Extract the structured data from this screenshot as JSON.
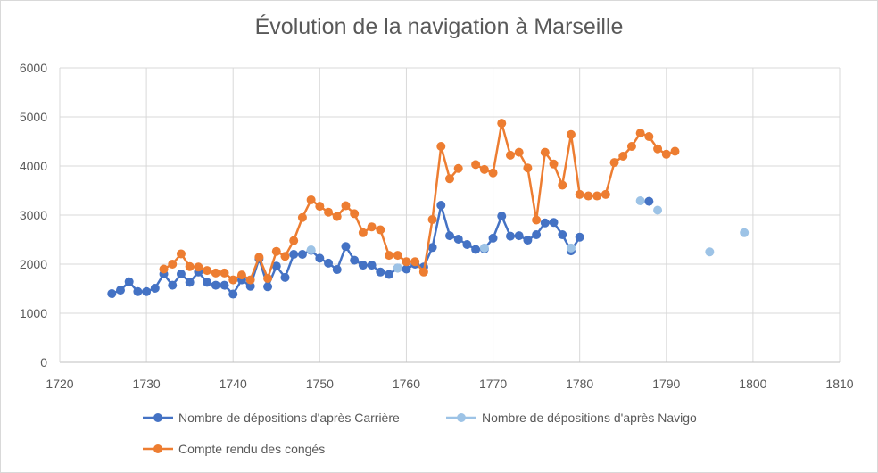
{
  "chart_data": {
    "type": "scatter",
    "title": "Évolution de la navigation à Marseille",
    "xlabel": "",
    "ylabel": "",
    "xlim": [
      1720,
      1810
    ],
    "ylim": [
      0,
      6000
    ],
    "x_ticks": [
      "1720",
      "1730",
      "1740",
      "1750",
      "1760",
      "1770",
      "1780",
      "1790",
      "1800",
      "1810"
    ],
    "y_ticks": [
      "0",
      "1000",
      "2000",
      "3000",
      "4000",
      "5000",
      "6000"
    ],
    "grid": "vertical and horizontal",
    "legend_position": "bottom",
    "series": [
      {
        "name": "Nombre de dépositions d'après Carrière",
        "color": "#4472c4",
        "lines": true,
        "x": [
          1726,
          1727,
          1728,
          1729,
          1730,
          1731,
          1732,
          1733,
          1734,
          1735,
          1736,
          1737,
          1738,
          1739,
          1740,
          1741,
          1742,
          1743,
          1744,
          1745,
          1746,
          1747,
          1748,
          1749,
          1750,
          1751,
          1752,
          1753,
          1754,
          1755,
          1756,
          1757,
          1758,
          1759,
          1760,
          1761,
          1762,
          1763,
          1764,
          1765,
          1766,
          1767,
          1768,
          1769,
          1770,
          1771,
          1772,
          1773,
          1774,
          1775,
          1776,
          1777,
          1778,
          1779,
          1780,
          1788
        ],
        "y": [
          1400,
          1470,
          1640,
          1440,
          1440,
          1510,
          1800,
          1570,
          1800,
          1630,
          1840,
          1630,
          1570,
          1570,
          1390,
          1680,
          1550,
          2110,
          1540,
          1960,
          1730,
          2200,
          2200,
          2280,
          2120,
          2020,
          1890,
          2360,
          2080,
          1980,
          1980,
          1840,
          1790,
          1920,
          1900,
          2000,
          1940,
          2340,
          3200,
          2580,
          2510,
          2400,
          2300,
          2310,
          2530,
          2980,
          2570,
          2580,
          2490,
          2600,
          2840,
          2850,
          2600,
          2270,
          2550,
          3280
        ]
      },
      {
        "name": "Nombre de dépositions d'après Navigo",
        "color": "#9dc3e6",
        "lines": false,
        "x": [
          1749,
          1759,
          1769,
          1779,
          1787,
          1789,
          1795,
          1799
        ],
        "y": [
          2290,
          1920,
          2330,
          2330,
          3290,
          3100,
          2250,
          2640
        ]
      },
      {
        "name": "Compte rendu des congés",
        "color": "#ed7d31",
        "lines": true,
        "x": [
          1732,
          1733,
          1734,
          1735,
          1736,
          1737,
          1738,
          1739,
          1740,
          1741,
          1742,
          1743,
          1744,
          1745,
          1746,
          1747,
          1748,
          1749,
          1750,
          1751,
          1752,
          1753,
          1754,
          1755,
          1756,
          1757,
          1758,
          1759,
          1760,
          1761,
          1762,
          1763,
          1764,
          1765,
          1766,
          1768,
          1769,
          1770,
          1771,
          1772,
          1773,
          1774,
          1775,
          1776,
          1777,
          1778,
          1779,
          1780,
          1781,
          1782,
          1783,
          1784,
          1785,
          1786,
          1787,
          1788,
          1789,
          1790,
          1791
        ],
        "y": [
          1900,
          2000,
          2210,
          1950,
          1940,
          1870,
          1820,
          1820,
          1680,
          1780,
          1680,
          2140,
          1710,
          2260,
          2160,
          2480,
          2950,
          3310,
          3180,
          3060,
          2970,
          3190,
          3030,
          2640,
          2760,
          2700,
          2180,
          2180,
          2050,
          2050,
          1840,
          2910,
          4400,
          3740,
          3950,
          4030,
          3930,
          3860,
          4870,
          4220,
          4280,
          3960,
          2900,
          4280,
          4040,
          3610,
          4640,
          3420,
          3390,
          3390,
          3420,
          4070,
          4200,
          4400,
          4670,
          4600,
          4350,
          4240,
          4300
        ]
      }
    ]
  }
}
